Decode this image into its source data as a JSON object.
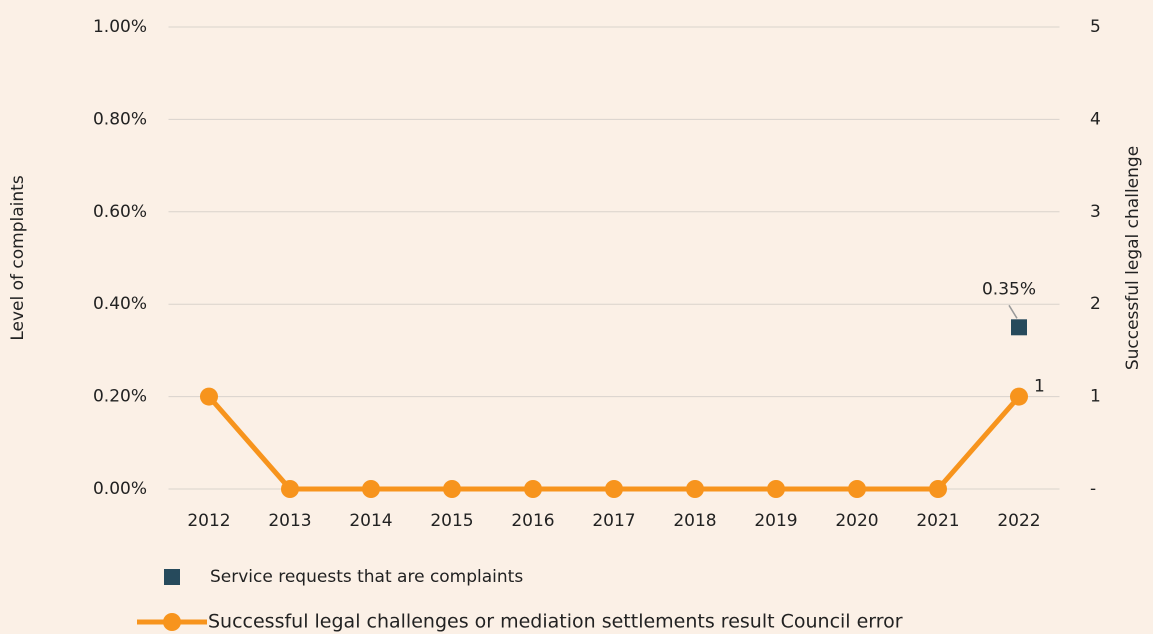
{
  "chart_data": {
    "type": "line",
    "categories": [
      "2012",
      "2013",
      "2014",
      "2015",
      "2016",
      "2017",
      "2018",
      "2019",
      "2020",
      "2021",
      "2022"
    ],
    "y_label": "Level of complaints",
    "y2_label": "Successful legal challenge",
    "ylim": [
      0,
      1
    ],
    "yticks": [
      {
        "value": 0,
        "label": "0.00%"
      },
      {
        "value": 0.2,
        "label": "0.20%"
      },
      {
        "value": 0.4,
        "label": "0.40%"
      },
      {
        "value": 0.6,
        "label": "0.60%"
      },
      {
        "value": 0.8,
        "label": "0.80%"
      },
      {
        "value": 1,
        "label": "1.00%"
      }
    ],
    "y2lim": [
      0,
      5
    ],
    "y2ticks": [
      {
        "value": 0,
        "label": "-"
      },
      1,
      2,
      3,
      4,
      5
    ],
    "grid": true,
    "series": [
      {
        "name": "Service requests that are complaints",
        "color": "#264a5c",
        "marker": "square",
        "values": [
          null,
          null,
          null,
          null,
          null,
          null,
          null,
          null,
          null,
          null,
          0.35
        ],
        "value_labels": [
          null,
          null,
          null,
          null,
          null,
          null,
          null,
          null,
          null,
          null,
          "0.35%"
        ]
      },
      {
        "name": "Successful legal challenges or mediation settlements result Council error",
        "color": "#f7941d",
        "marker": "circle",
        "axis": "y2",
        "values": [
          1,
          0,
          0,
          0,
          0,
          0,
          0,
          0,
          0,
          0,
          1
        ],
        "value_labels": [
          null,
          null,
          null,
          null,
          null,
          null,
          null,
          null,
          null,
          null,
          "1"
        ]
      }
    ]
  }
}
